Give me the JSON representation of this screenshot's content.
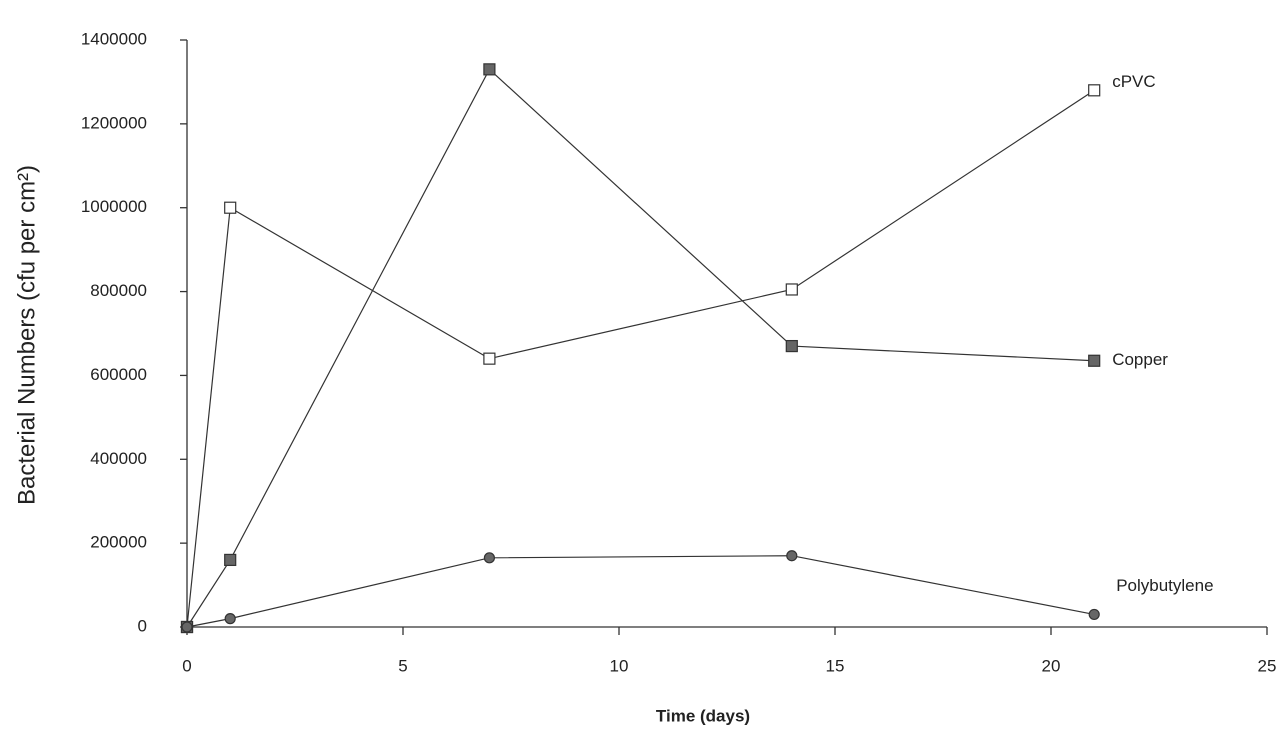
{
  "chart_data": {
    "type": "line",
    "x_label": "Time (days)",
    "y_label": "Bacterial Numbers (cfu per cm²)",
    "x": [
      0,
      1,
      7,
      14,
      21
    ],
    "series": [
      {
        "name": "cPVC",
        "color": "#333333",
        "marker": "square-open",
        "values": [
          0,
          1000000,
          640000,
          805000,
          1280000
        ]
      },
      {
        "name": "Copper",
        "color": "#333333",
        "marker": "square-filled",
        "values": [
          0,
          160000,
          1330000,
          670000,
          635000
        ]
      },
      {
        "name": "Polybutylene",
        "color": "#333333",
        "marker": "circle",
        "values": [
          0,
          20000,
          165000,
          170000,
          30000
        ]
      }
    ],
    "xlim": [
      0,
      25
    ],
    "xticks": [
      0,
      5,
      10,
      15,
      20,
      25
    ],
    "ylim": [
      0,
      1400000
    ],
    "yticks": [
      0,
      200000,
      400000,
      600000,
      800000,
      1000000,
      1200000,
      1400000
    ],
    "grid": false
  }
}
